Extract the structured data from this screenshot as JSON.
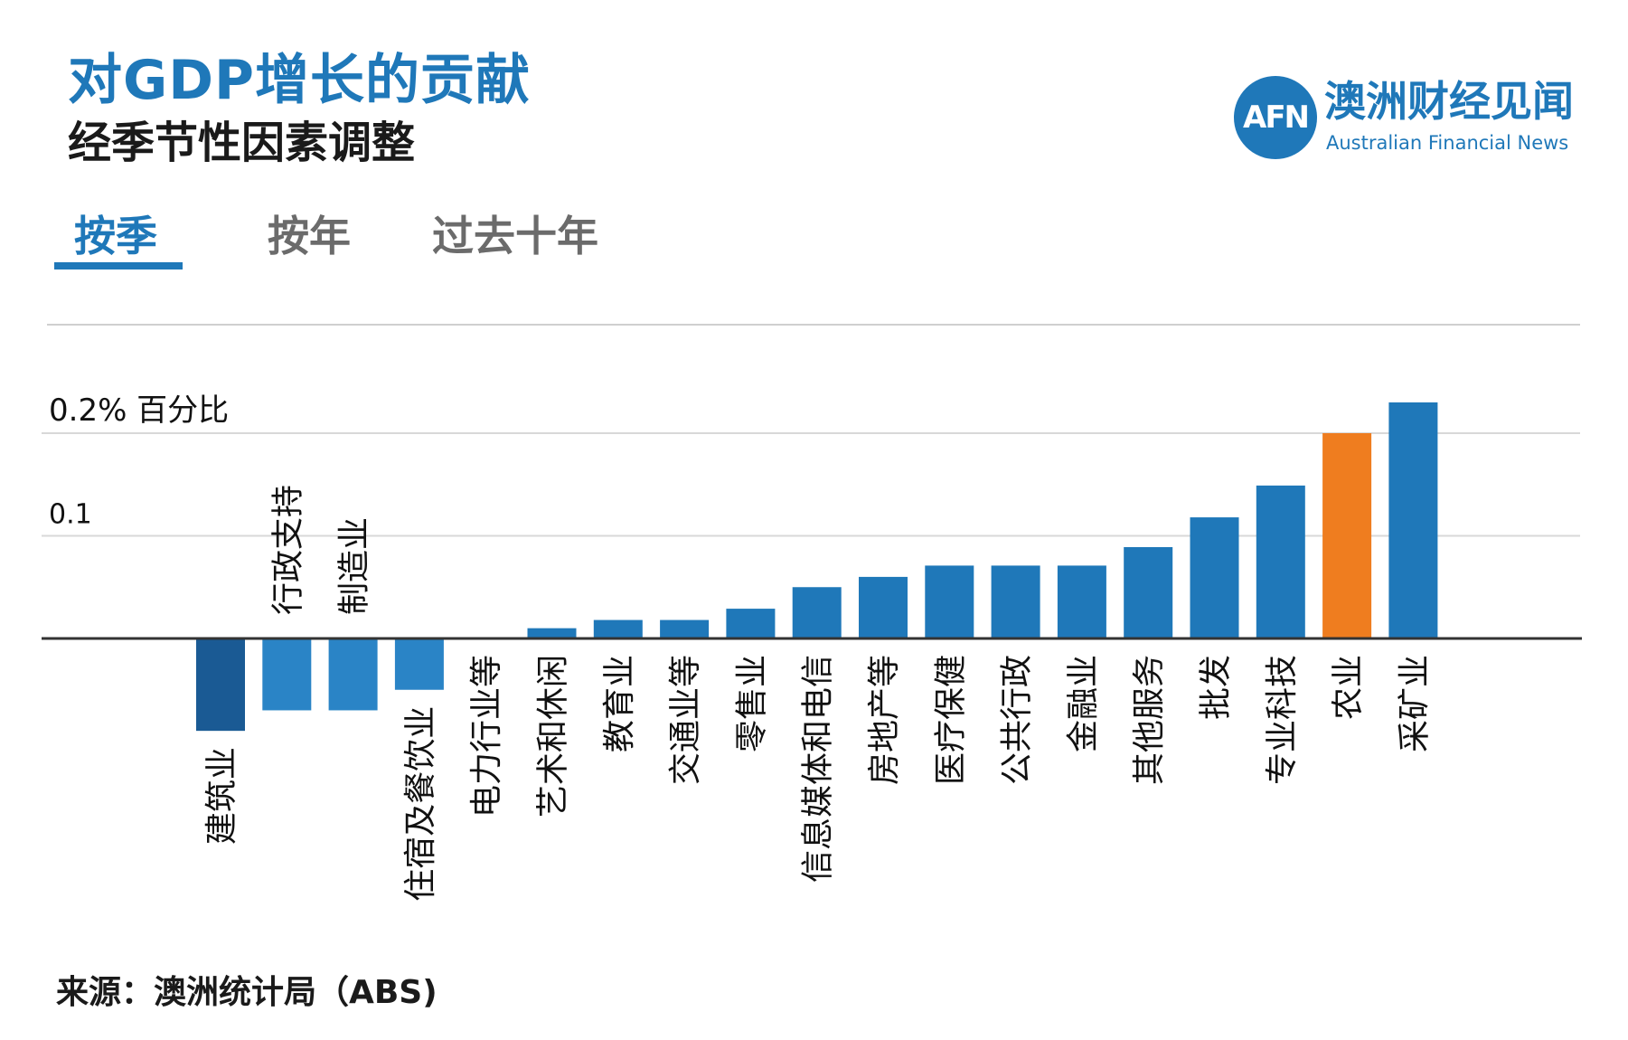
{
  "header": {
    "title": "对GDP增长的贡献",
    "subtitle": "经季节性因素调整"
  },
  "logo": {
    "mark": "AFN",
    "name_cn": "澳洲财经见闻",
    "name_en": "Australian Financial News"
  },
  "tabs": [
    {
      "label": "按季",
      "active": true
    },
    {
      "label": "按年",
      "active": false
    },
    {
      "label": "过去十年",
      "active": false
    }
  ],
  "footer": {
    "source": "来源：澳洲统计局（ABS)"
  },
  "colors": {
    "accent": "#1f78b9",
    "highlight": "#ef7d1f",
    "dark_bar": "#1a5a94",
    "negative_bar": "#2a84c6"
  },
  "chart_data": {
    "type": "bar",
    "ylim": [
      -0.12,
      0.31
    ],
    "ticks": [
      {
        "value": 0.2,
        "label": "0.2% 百分比"
      },
      {
        "value": 0.1,
        "label": "0.1"
      }
    ],
    "categories": [
      "建筑业",
      "行政支持",
      "制造业",
      "住宿及餐饮业",
      "电力行业等",
      "艺术和休闲",
      "教育业",
      "交通业等",
      "零售业",
      "信息媒体和电信",
      "房地产等",
      "医疗保健",
      "公共行政",
      "金融业",
      "其他服务",
      "批发",
      "专业科技",
      "农业",
      "采矿业"
    ],
    "values": [
      -0.09,
      -0.07,
      -0.07,
      -0.05,
      0.0,
      0.01,
      0.018,
      0.018,
      0.029,
      0.05,
      0.06,
      0.071,
      0.071,
      0.071,
      0.089,
      0.118,
      0.149,
      0.2,
      0.23
    ],
    "highlight": "农业",
    "title": "对GDP增长的贡献",
    "xlabel": "",
    "ylabel": ""
  }
}
